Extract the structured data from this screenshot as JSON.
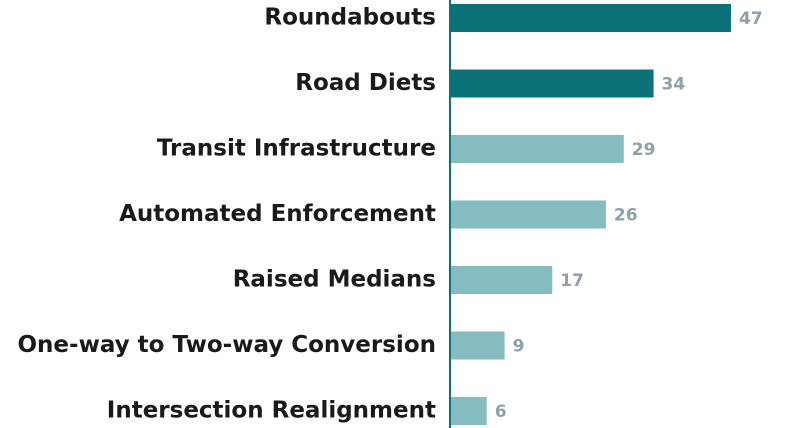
{
  "chart_data": {
    "type": "bar",
    "orientation": "horizontal",
    "categories": [
      "Roundabouts",
      "Road Diets",
      "Transit Infrastructure",
      "Automated Enforcement",
      "Raised Medians",
      "One-way to Two-way Conversion",
      "Intersection Realignment"
    ],
    "values": [
      47,
      34,
      29,
      26,
      17,
      9,
      6
    ],
    "colors": [
      "#0b727a",
      "#0b727a",
      "#85bcc0",
      "#85bcc0",
      "#85bcc0",
      "#85bcc0",
      "#85bcc0"
    ],
    "data_labels": true
  }
}
